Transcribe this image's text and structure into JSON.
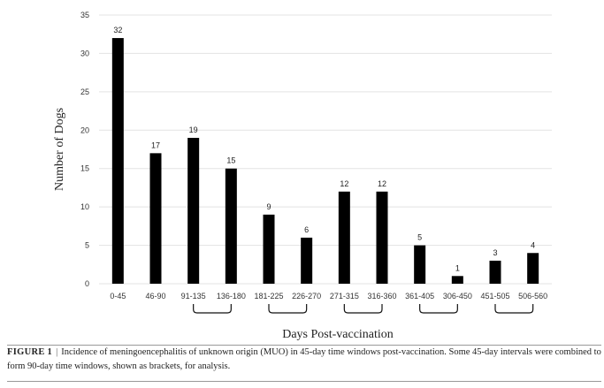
{
  "chart_data": {
    "type": "bar",
    "categories": [
      "0-45",
      "46-90",
      "91-135",
      "136-180",
      "181-225",
      "226-270",
      "271-315",
      "316-360",
      "361-405",
      "306-450",
      "451-505",
      "506-560"
    ],
    "values": [
      32,
      17,
      19,
      15,
      9,
      6,
      12,
      12,
      5,
      1,
      3,
      4
    ],
    "ylim": [
      0,
      35
    ],
    "yticks": [
      0,
      5,
      10,
      15,
      20,
      25,
      30,
      35
    ],
    "xlabel": "Days Post-vaccination",
    "ylabel": "Number of Dogs",
    "grid": true,
    "bar_color": "#000000",
    "brackets": [
      [
        2,
        3
      ],
      [
        4,
        5
      ],
      [
        6,
        7
      ],
      [
        8,
        9
      ],
      [
        10,
        11
      ]
    ]
  },
  "caption": {
    "label": "FIGURE 1",
    "separator": "|",
    "text": "Incidence of meningoencephalitis of unknown origin (MUO) in 45-day time windows post-vaccination. Some 45-day intervals were combined to form 90-day time windows, shown as brackets, for analysis."
  }
}
